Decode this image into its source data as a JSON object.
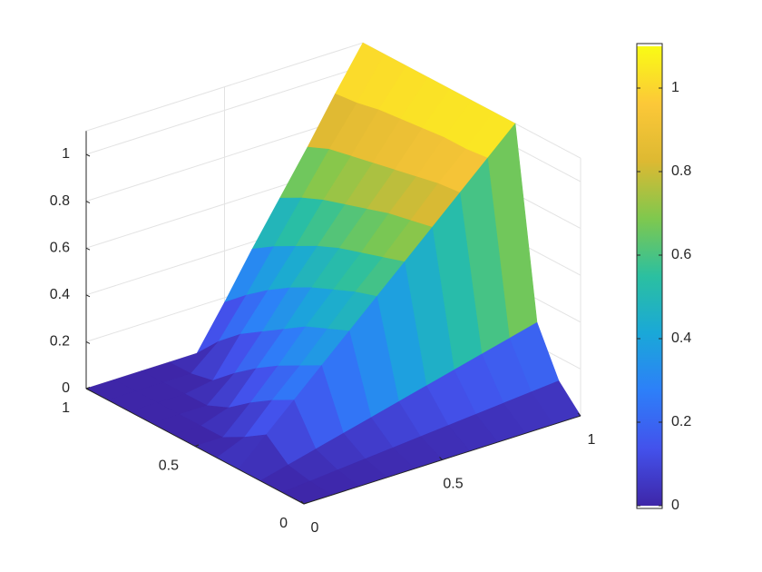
{
  "chart_data": {
    "type": "surface",
    "x": [
      0,
      0.1,
      0.2,
      0.3,
      0.4,
      0.5,
      0.6,
      0.7,
      0.8,
      0.9,
      1
    ],
    "y": [
      0,
      0.1,
      0.2,
      0.3,
      0.4,
      0.5,
      0.6,
      0.7,
      0.8,
      0.9,
      1
    ],
    "z": [
      [
        0,
        0,
        0,
        0,
        0,
        0,
        0,
        0,
        0,
        0,
        0
      ],
      [
        0,
        0.01,
        0.02,
        0.03,
        0.04,
        0.05,
        0.06,
        0.07,
        0.08,
        0.09,
        0.1
      ],
      [
        0,
        0.03,
        0.06,
        0.09,
        0.12,
        0.15,
        0.18,
        0.21,
        0.24,
        0.27,
        0.3
      ],
      [
        0,
        0.11,
        0.22,
        0.33,
        0.44,
        0.55,
        0.66,
        0.77,
        0.88,
        0.99,
        1.1
      ],
      [
        0,
        0.05,
        0.17,
        0.28,
        0.4,
        0.52,
        0.63,
        0.75,
        0.87,
        0.98,
        1.1
      ],
      [
        0,
        0,
        0.11,
        0.23,
        0.36,
        0.48,
        0.6,
        0.73,
        0.85,
        0.98,
        1.1
      ],
      [
        0,
        0,
        0.04,
        0.17,
        0.3,
        0.44,
        0.57,
        0.7,
        0.83,
        0.97,
        1.1
      ],
      [
        0,
        0,
        0,
        0.1,
        0.24,
        0.39,
        0.53,
        0.67,
        0.81,
        0.96,
        1.1
      ],
      [
        0,
        0,
        0,
        0.02,
        0.18,
        0.33,
        0.48,
        0.64,
        0.79,
        0.95,
        1.1
      ],
      [
        0,
        0,
        0,
        0,
        0.1,
        0.26,
        0.43,
        0.6,
        0.77,
        0.93,
        1.1
      ],
      [
        0,
        0,
        0,
        0,
        0,
        0.18,
        0.37,
        0.55,
        0.73,
        0.92,
        1.1
      ]
    ],
    "xlim": [
      0,
      1
    ],
    "ylim": [
      0,
      1
    ],
    "zlim": [
      0,
      1.1
    ],
    "xticks": [
      0,
      0.5,
      1
    ],
    "yticks": [
      0,
      0.5,
      1
    ],
    "zticks": [
      0,
      0.2,
      0.4,
      0.6,
      0.8,
      1
    ],
    "clim": [
      0,
      1.1
    ],
    "colorbar_ticks": [
      0,
      0.2,
      0.4,
      0.6,
      0.8,
      1
    ],
    "colormap": [
      "#3e26a8",
      "#4352ec",
      "#2d7ff9",
      "#1aa8d8",
      "#2bc0a0",
      "#7fc84e",
      "#ddb932",
      "#fcc838",
      "#f9fb15"
    ],
    "grid": true
  }
}
